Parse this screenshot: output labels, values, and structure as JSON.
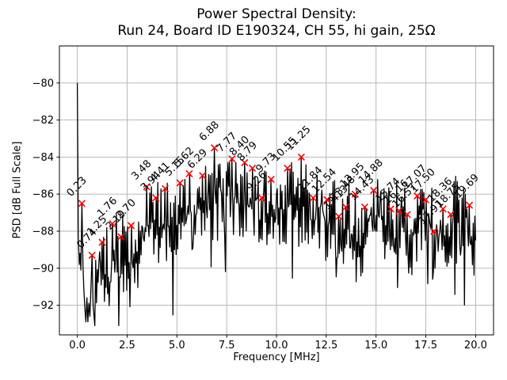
{
  "title": {
    "line1": "Power Spectral Density:",
    "line2": "Run 24, Board ID E190324, CH 55, hi gain, 25Ω"
  },
  "chart_data": {
    "type": "line",
    "title": "Power Spectral Density:\nRun 24, Board ID E190324, CH 55, hi gain, 25Ω",
    "xlabel": "Frequency [MHz]",
    "ylabel": "PSD [dB Full Scale]",
    "xlim": [
      -0.9,
      20.9
    ],
    "ylim": [
      -93.6,
      -78.0
    ],
    "x_ticks": [
      0.0,
      2.5,
      5.0,
      7.5,
      10.0,
      12.5,
      15.0,
      17.5,
      20.0
    ],
    "x_tick_labels": [
      "0.0",
      "2.5",
      "5.0",
      "7.5",
      "10.0",
      "12.5",
      "15.0",
      "17.5",
      "20.0"
    ],
    "y_ticks": [
      -80,
      -82,
      -84,
      -86,
      -88,
      -90,
      -92
    ],
    "y_tick_labels": [
      "−80",
      "−82",
      "−84",
      "−86",
      "−88",
      "−90",
      "−92"
    ],
    "grid": true,
    "grid_color": "#b0b0b0",
    "line_color": "#000000",
    "marker": {
      "style": "x",
      "color": "#ff0000"
    },
    "peak_label_rotation_deg": 45,
    "dc_spike": {
      "freq": 0.0,
      "psd": -80.0
    },
    "noise_floor_range": [
      -93.1,
      -84.3
    ],
    "peaks": [
      {
        "f": 0.23,
        "psd": -86.5,
        "label": "0.23"
      },
      {
        "f": 0.74,
        "psd": -89.3,
        "label": "0.74"
      },
      {
        "f": 1.25,
        "psd": -88.6,
        "label": "1.25"
      },
      {
        "f": 1.76,
        "psd": -87.6,
        "label": "1.76"
      },
      {
        "f": 2.19,
        "psd": -88.3,
        "label": "2.19"
      },
      {
        "f": 2.7,
        "psd": -87.7,
        "label": "2.70"
      },
      {
        "f": 3.48,
        "psd": -85.6,
        "label": "3.48"
      },
      {
        "f": 3.94,
        "psd": -86.2,
        "label": "3.94"
      },
      {
        "f": 4.41,
        "psd": -85.7,
        "label": "4.41"
      },
      {
        "f": 5.15,
        "psd": -85.4,
        "label": "5.15"
      },
      {
        "f": 5.62,
        "psd": -84.9,
        "label": "5.62"
      },
      {
        "f": 6.29,
        "psd": -85.0,
        "label": "6.29"
      },
      {
        "f": 6.88,
        "psd": -83.5,
        "label": "6.88"
      },
      {
        "f": 7.77,
        "psd": -84.1,
        "label": "7.77"
      },
      {
        "f": 8.4,
        "psd": -84.3,
        "label": "8.40"
      },
      {
        "f": 8.79,
        "psd": -84.6,
        "label": "8.79"
      },
      {
        "f": 9.26,
        "psd": -86.2,
        "label": "9.26"
      },
      {
        "f": 9.73,
        "psd": -85.2,
        "label": "9.73"
      },
      {
        "f": 10.55,
        "psd": -84.6,
        "label": "10.55"
      },
      {
        "f": 11.25,
        "psd": -84.0,
        "label": "11.25"
      },
      {
        "f": 11.84,
        "psd": -86.2,
        "label": "11.84"
      },
      {
        "f": 12.54,
        "psd": -86.3,
        "label": "12.54"
      },
      {
        "f": 13.13,
        "psd": -87.2,
        "label": "13.13"
      },
      {
        "f": 13.48,
        "psd": -86.7,
        "label": "13.48"
      },
      {
        "f": 13.95,
        "psd": -86.0,
        "label": "13.95"
      },
      {
        "f": 14.43,
        "psd": -86.7,
        "label": "14.43"
      },
      {
        "f": 14.88,
        "psd": -85.8,
        "label": "14.88"
      },
      {
        "f": 15.74,
        "psd": -86.8,
        "label": "15.74"
      },
      {
        "f": 16.16,
        "psd": -86.9,
        "label": "16.16"
      },
      {
        "f": 16.57,
        "psd": -87.1,
        "label": "16.57"
      },
      {
        "f": 17.07,
        "psd": -86.1,
        "label": "17.07"
      },
      {
        "f": 17.5,
        "psd": -86.3,
        "label": "17.50"
      },
      {
        "f": 17.91,
        "psd": -88.0,
        "label": "17.91"
      },
      {
        "f": 18.36,
        "psd": -86.8,
        "label": "18.36"
      },
      {
        "f": 18.75,
        "psd": -87.1,
        "label": "18.75"
      },
      {
        "f": 19.69,
        "psd": -86.6,
        "label": "19.69"
      }
    ],
    "trace_guide": [
      [
        0.0,
        -80.0
      ],
      [
        0.05,
        -88.3
      ],
      [
        0.1,
        -89.8
      ],
      [
        0.14,
        -89.2
      ],
      [
        0.18,
        -90.1
      ],
      [
        0.23,
        -86.5
      ],
      [
        0.28,
        -89.8
      ],
      [
        0.33,
        -91.2
      ],
      [
        0.38,
        -92.2
      ],
      [
        0.43,
        -92.9
      ],
      [
        0.48,
        -91.6
      ],
      [
        0.53,
        -92.9
      ],
      [
        0.58,
        -91.9
      ],
      [
        0.63,
        -92.6
      ],
      [
        0.68,
        -91.2
      ],
      [
        0.74,
        -89.3
      ],
      [
        0.79,
        -92.0
      ],
      [
        0.84,
        -92.6
      ]
    ],
    "envelope": [
      [
        0.9,
        -90.5
      ],
      [
        1.25,
        -89.3
      ],
      [
        1.6,
        -90.3
      ],
      [
        2.0,
        -89.2
      ],
      [
        2.5,
        -89.6
      ],
      [
        2.9,
        -90.2
      ],
      [
        3.3,
        -88.2
      ],
      [
        3.7,
        -87.4
      ],
      [
        4.5,
        -87.4
      ],
      [
        5.5,
        -86.9
      ],
      [
        6.5,
        -86.6
      ],
      [
        7.5,
        -86.1
      ],
      [
        8.5,
        -86.2
      ],
      [
        9.5,
        -86.6
      ],
      [
        10.5,
        -86.5
      ],
      [
        11.5,
        -86.7
      ],
      [
        12.5,
        -87.3
      ],
      [
        13.3,
        -87.8
      ],
      [
        13.9,
        -89.0
      ],
      [
        14.6,
        -87.5
      ],
      [
        15.2,
        -86.9
      ],
      [
        16.0,
        -87.3
      ],
      [
        16.9,
        -88.3
      ],
      [
        17.5,
        -87.2
      ],
      [
        18.1,
        -87.8
      ],
      [
        18.8,
        -87.5
      ],
      [
        19.4,
        -87.7
      ],
      [
        20.0,
        -88.6
      ]
    ]
  }
}
